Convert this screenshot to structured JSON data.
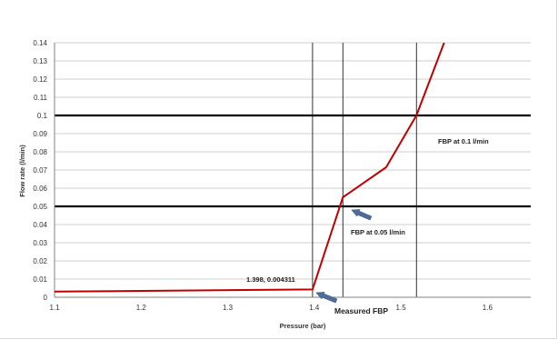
{
  "chart_data": {
    "type": "line",
    "title": "",
    "xlabel": "Pressure (bar)",
    "ylabel": "Flow rate (l/min)",
    "xlim": [
      1.1,
      1.65
    ],
    "ylim": [
      0,
      0.14
    ],
    "x_ticks": [
      "1.1",
      "1.2",
      "1.3",
      "1.4",
      "1.5",
      "1.6"
    ],
    "x_tick_values": [
      1.1,
      1.2,
      1.3,
      1.4,
      1.5,
      1.6
    ],
    "y_ticks": [
      "0",
      "0.01",
      "0.02",
      "0.03",
      "0.04",
      "0.05",
      "0.06",
      "0.07",
      "0.08",
      "0.09",
      "0.1",
      "0.11",
      "0.12",
      "0.13",
      "0.14"
    ],
    "y_tick_values": [
      0,
      0.01,
      0.02,
      0.03,
      0.04,
      0.05,
      0.06,
      0.07,
      0.08,
      0.09,
      0.1,
      0.11,
      0.12,
      0.13,
      0.14
    ],
    "grid": "horizontal",
    "series": [
      {
        "color": "#c00000",
        "x": [
          1.1,
          1.398,
          1.433,
          1.483,
          1.518,
          1.55
        ],
        "y": [
          0.0031,
          0.004311,
          0.055,
          0.0715,
          0.1,
          0.14
        ]
      }
    ],
    "threshold_lines": [
      0.05,
      0.1
    ],
    "vertical_markers": [
      1.398,
      1.433,
      1.518
    ],
    "annotations": {
      "point_label": "1.398, 0.004311",
      "fbp_01": "FBP at 0.1 l/min",
      "fbp_005": "FBP at 0.05 l/min",
      "measured": "Measured FBP"
    },
    "arrow_color": "#4f6d9a"
  }
}
